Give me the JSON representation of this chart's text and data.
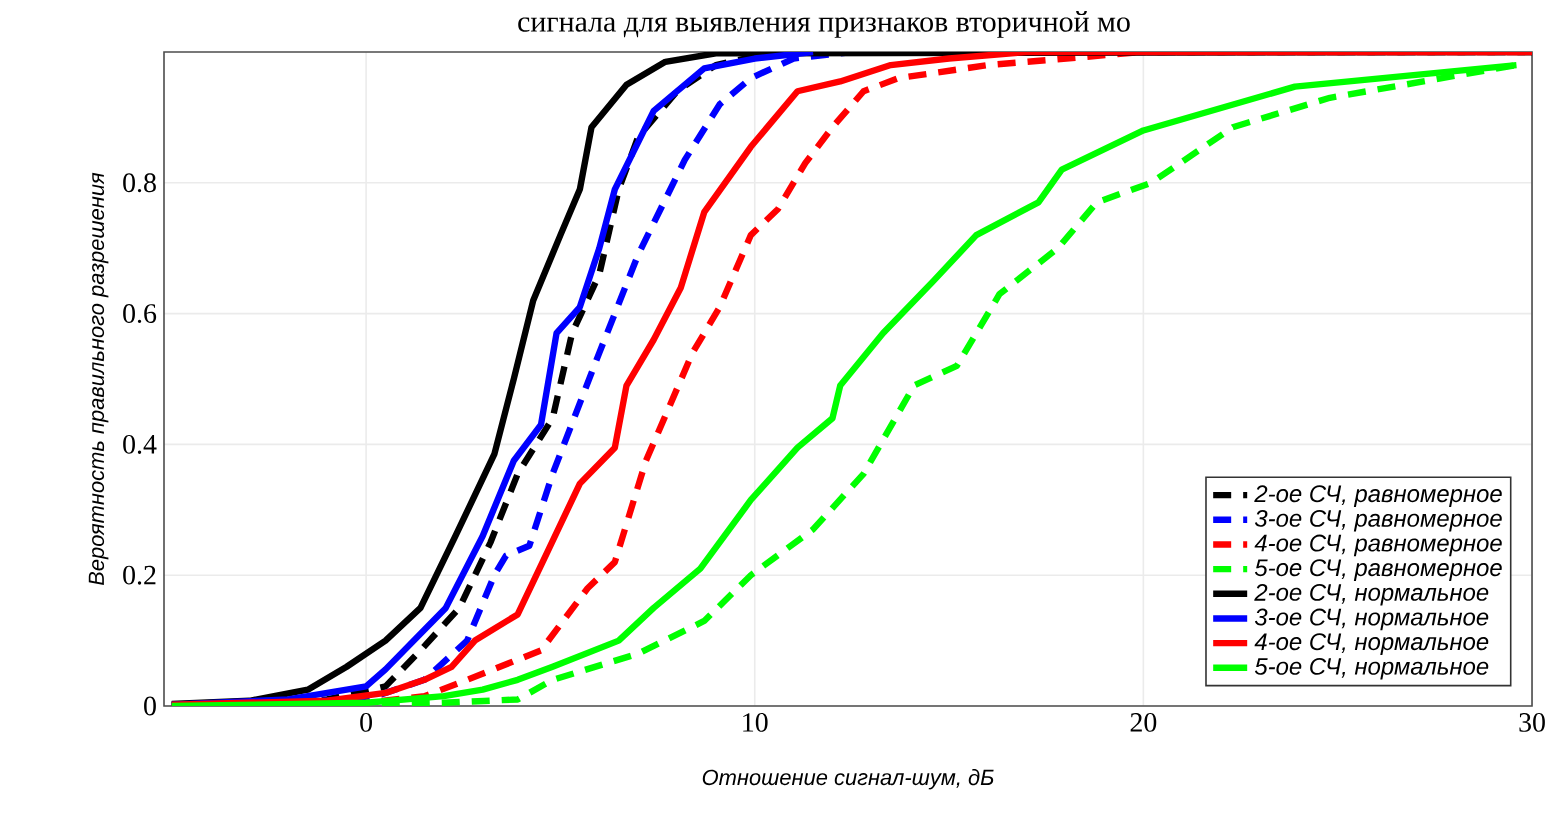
{
  "chart_data": {
    "type": "line",
    "annotations": [
      "сигнала для выявления признаков вторичной мо"
    ],
    "xlabel": "Отношение сигнал-шум, дБ",
    "ylabel": "Вероятность правильного разрешения",
    "xlim": [
      -5.2,
      30
    ],
    "ylim": [
      0,
      1
    ],
    "xticks": [
      0,
      10,
      20,
      30
    ],
    "yticks": [
      0,
      0.2,
      0.4,
      0.6,
      0.8
    ],
    "grid": true,
    "legend": "bottom right",
    "marker": "none",
    "series": [
      {
        "name": "2-ое СЧ, равномерное",
        "color": "#000000",
        "line_style": "dashed",
        "x": [
          -5,
          -1,
          0.5,
          1.4,
          2.4,
          3.2,
          3.9,
          4.8,
          5.3,
          6,
          6.5,
          7,
          8,
          9,
          10.5,
          30
        ],
        "values": [
          0.002,
          0.01,
          0.03,
          0.085,
          0.15,
          0.25,
          0.355,
          0.44,
          0.57,
          0.66,
          0.79,
          0.87,
          0.94,
          0.98,
          1,
          1
        ]
      },
      {
        "name": "3-ое СЧ, равномерное",
        "color": "#0000ff",
        "line_style": "dashed",
        "x": [
          -5,
          0,
          1.5,
          2.6,
          3.3,
          3.6,
          4.2,
          4.8,
          6,
          7,
          8.2,
          9.1,
          9.9,
          11,
          12.5
        ],
        "values": [
          0.001,
          0.01,
          0.04,
          0.1,
          0.2,
          0.23,
          0.245,
          0.355,
          0.54,
          0.69,
          0.835,
          0.92,
          0.96,
          0.99,
          1
        ]
      },
      {
        "name": "4-ое СЧ, равномерное",
        "color": "#ff0000",
        "line_style": "dashed",
        "x": [
          -5,
          0,
          1.5,
          2.6,
          4.5,
          5.7,
          6.4,
          7.2,
          8.4,
          9.1,
          9.9,
          10.6,
          11.3,
          12,
          12.8,
          13.7,
          16,
          18,
          20,
          30
        ],
        "values": [
          0.001,
          0.005,
          0.015,
          0.04,
          0.085,
          0.18,
          0.22,
          0.375,
          0.54,
          0.61,
          0.72,
          0.76,
          0.83,
          0.885,
          0.94,
          0.96,
          0.98,
          0.99,
          1,
          1
        ]
      },
      {
        "name": "5-ое СЧ, равномерное",
        "color": "#00ff00",
        "line_style": "dashed",
        "x": [
          -5,
          0,
          2,
          3.9,
          4.8,
          7,
          8.7,
          9.9,
          11.5,
          12.8,
          14.1,
          15.2,
          16.3,
          17.8,
          18.8,
          20.2,
          22.3,
          24.8,
          29.6
        ],
        "values": [
          0,
          0.002,
          0.005,
          0.01,
          0.04,
          0.08,
          0.13,
          0.2,
          0.27,
          0.355,
          0.49,
          0.52,
          0.63,
          0.7,
          0.77,
          0.8,
          0.885,
          0.93,
          0.98
        ]
      },
      {
        "name": "2-ое СЧ, нормальное",
        "color": "#000000",
        "line_style": "solid",
        "x": [
          -5,
          -3,
          -1.5,
          -0.5,
          0.5,
          1.4,
          2.3,
          3.3,
          3.8,
          4.3,
          5,
          5.5,
          5.8,
          6.7,
          7.7,
          9,
          30
        ],
        "values": [
          0.003,
          0.008,
          0.025,
          0.06,
          0.1,
          0.15,
          0.26,
          0.385,
          0.5,
          0.62,
          0.72,
          0.79,
          0.885,
          0.95,
          0.985,
          0.998,
          1
        ]
      },
      {
        "name": "3-ое СЧ, нормальное",
        "color": "#0000ff",
        "line_style": "solid",
        "x": [
          -5,
          -2,
          0,
          0.5,
          2.05,
          3,
          3.8,
          4.5,
          4.9,
          5.5,
          6,
          6.4,
          7.4,
          8.7,
          10,
          11.5
        ],
        "values": [
          0.002,
          0.01,
          0.03,
          0.056,
          0.15,
          0.26,
          0.375,
          0.43,
          0.57,
          0.61,
          0.7,
          0.79,
          0.91,
          0.975,
          0.99,
          1
        ]
      },
      {
        "name": "4-ое СЧ, нормальное",
        "color": "#ff0000",
        "line_style": "solid",
        "x": [
          -5,
          -1,
          0.5,
          1.5,
          2.2,
          2.8,
          3.9,
          4.7,
          5.5,
          6.4,
          6.7,
          7.4,
          8.1,
          8.7,
          9.9,
          11.1,
          12.2,
          13.5,
          15,
          17,
          30
        ],
        "values": [
          0.002,
          0.008,
          0.02,
          0.04,
          0.06,
          0.1,
          0.14,
          0.24,
          0.34,
          0.395,
          0.49,
          0.56,
          0.64,
          0.755,
          0.855,
          0.94,
          0.955,
          0.98,
          0.99,
          1,
          1
        ]
      },
      {
        "name": "5-ое СЧ, нормальное",
        "color": "#00ff00",
        "line_style": "solid",
        "x": [
          -5,
          0,
          2,
          3,
          3.9,
          4.8,
          6.5,
          7.4,
          8.6,
          9.9,
          11.1,
          12,
          12.2,
          13.3,
          14.6,
          15.7,
          17.3,
          17.9,
          20,
          23.9,
          29.6
        ],
        "values": [
          0,
          0.005,
          0.015,
          0.025,
          0.04,
          0.06,
          0.1,
          0.15,
          0.21,
          0.315,
          0.395,
          0.44,
          0.49,
          0.57,
          0.65,
          0.72,
          0.77,
          0.82,
          0.88,
          0.947,
          0.98
        ]
      }
    ]
  }
}
